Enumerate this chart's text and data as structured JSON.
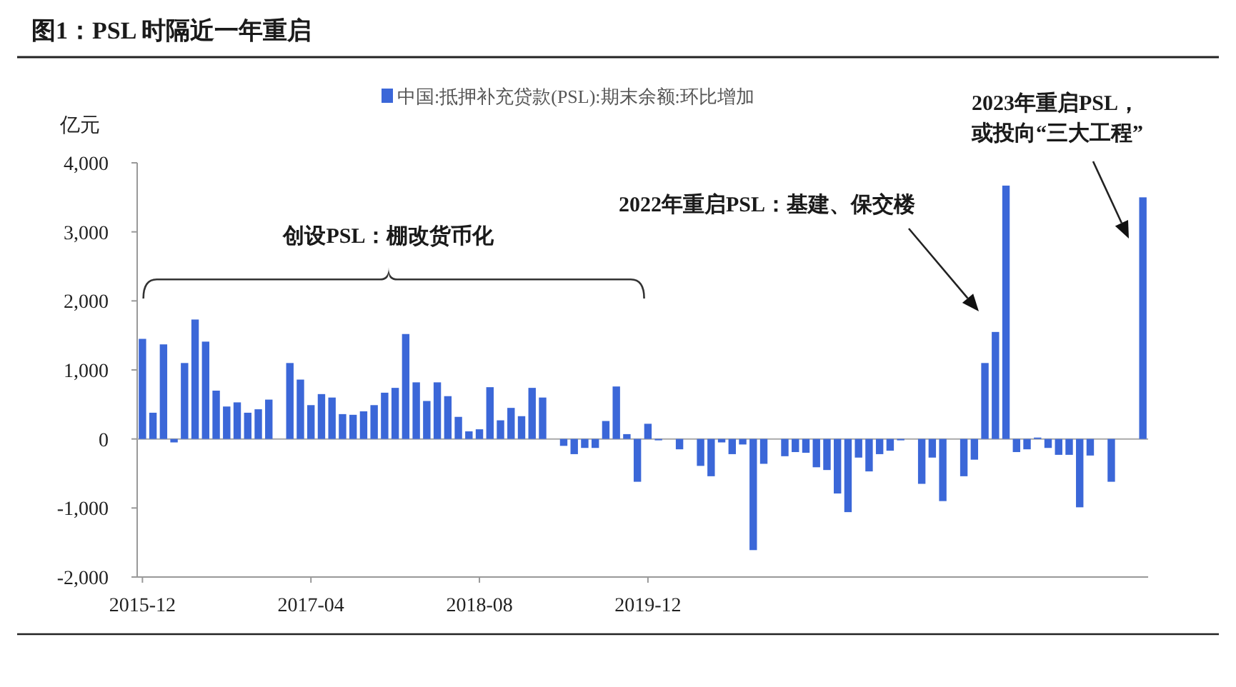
{
  "chart_data": {
    "type": "bar",
    "title": "图1：PSL 时隔近一年重启",
    "ylabel": "亿元",
    "categories": [
      "2015-12",
      null,
      null,
      null,
      null,
      null,
      null,
      null,
      null,
      null,
      null,
      null,
      null,
      null,
      null,
      null,
      "2017-04",
      null,
      null,
      null,
      null,
      null,
      null,
      null,
      null,
      null,
      null,
      null,
      null,
      null,
      null,
      null,
      "2018-08",
      null,
      null,
      null,
      null,
      null,
      null,
      null,
      null,
      null,
      null,
      null,
      null,
      null,
      null,
      null,
      "2019-12",
      null,
      null,
      null,
      null,
      null,
      null,
      null,
      null,
      null,
      null,
      null,
      null,
      null,
      null,
      null,
      null,
      null,
      null,
      null,
      null,
      null,
      null,
      null,
      null,
      null,
      null,
      null,
      null,
      null,
      null,
      null,
      null,
      null,
      null,
      null,
      null,
      null,
      null,
      null,
      null,
      null,
      null,
      null,
      null,
      null,
      null,
      null
    ],
    "series": [
      {
        "name": "中国:抵押补充贷款(PSL):期末余额:环比增加",
        "color": "#3b67d8",
        "values": [
          1450,
          380,
          1370,
          -50,
          1100,
          1730,
          1410,
          700,
          470,
          530,
          380,
          430,
          570,
          0,
          1100,
          860,
          490,
          650,
          600,
          360,
          350,
          400,
          490,
          670,
          740,
          1520,
          820,
          550,
          820,
          620,
          320,
          110,
          140,
          750,
          270,
          450,
          330,
          740,
          600,
          0,
          -100,
          -220,
          -130,
          -130,
          260,
          760,
          70,
          -620,
          220,
          -20,
          0,
          -150,
          0,
          -390,
          -540,
          -50,
          -220,
          -80,
          -1610,
          -360,
          0,
          -250,
          -190,
          -200,
          -410,
          -450,
          -790,
          -1060,
          -270,
          -470,
          -220,
          -170,
          -20,
          0,
          -650,
          -270,
          -900,
          0,
          -540,
          -300,
          1100,
          1550,
          3670,
          -190,
          -150,
          20,
          -130,
          -230,
          -230,
          -990,
          -240,
          0,
          -620,
          0,
          0,
          3500
        ]
      }
    ],
    "ylim": [
      -2000,
      4000
    ],
    "yticks": [
      {
        "value": -2000,
        "label": "-2,000"
      },
      {
        "value": -1000,
        "label": "-1,000"
      },
      0,
      {
        "value": 1000,
        "label": "1,000"
      },
      {
        "value": 2000,
        "label": "2,000"
      },
      {
        "value": 3000,
        "label": "3,000"
      },
      {
        "value": 4000,
        "label": "4,000"
      }
    ],
    "legend": "top",
    "annotations": [
      "创设PSL：棚改货币化",
      "2022年重启PSL：基建、保交楼",
      "2023年重启PSL，",
      "或投向“三大工程”"
    ]
  }
}
